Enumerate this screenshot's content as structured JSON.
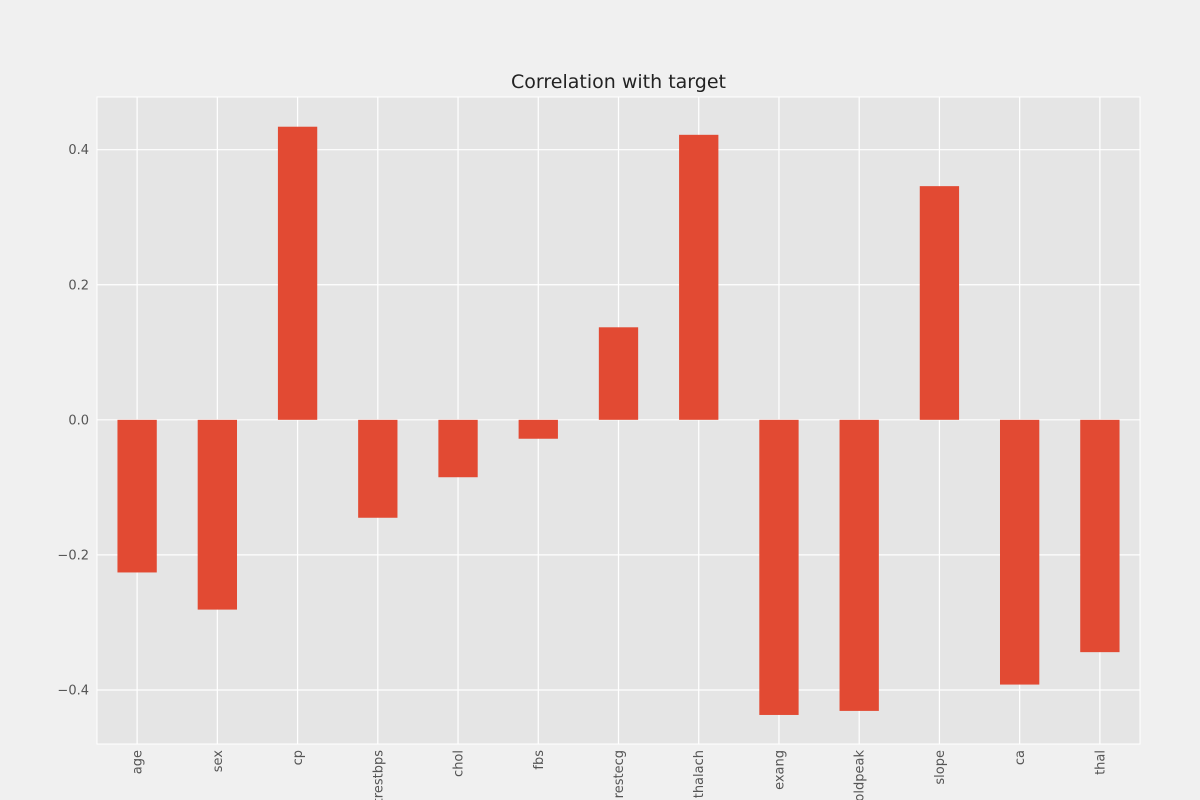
{
  "chart_data": {
    "type": "bar",
    "title": "Correlation with target",
    "xlabel": "",
    "ylabel": "",
    "categories": [
      "age",
      "sex",
      "cp",
      "trestbps",
      "chol",
      "fbs",
      "restecg",
      "thalach",
      "exang",
      "oldpeak",
      "slope",
      "ca",
      "thal"
    ],
    "values": [
      -0.226,
      -0.281,
      0.434,
      -0.145,
      -0.085,
      -0.028,
      0.137,
      0.422,
      -0.437,
      -0.431,
      0.346,
      -0.392,
      -0.344
    ],
    "ylim": [
      -0.48,
      0.478
    ],
    "yticks": [
      -0.4,
      -0.2,
      0.0,
      0.2,
      0.4
    ],
    "ytick_labels": [
      "−0.4",
      "−0.2",
      "0.0",
      "0.2",
      "0.4"
    ],
    "grid": true,
    "legend": "none",
    "colors": {
      "bar": "#e24a33",
      "plot_background": "#e5e5e5",
      "figure_background": "#f0f0f0",
      "grid": "#ffffff"
    }
  }
}
